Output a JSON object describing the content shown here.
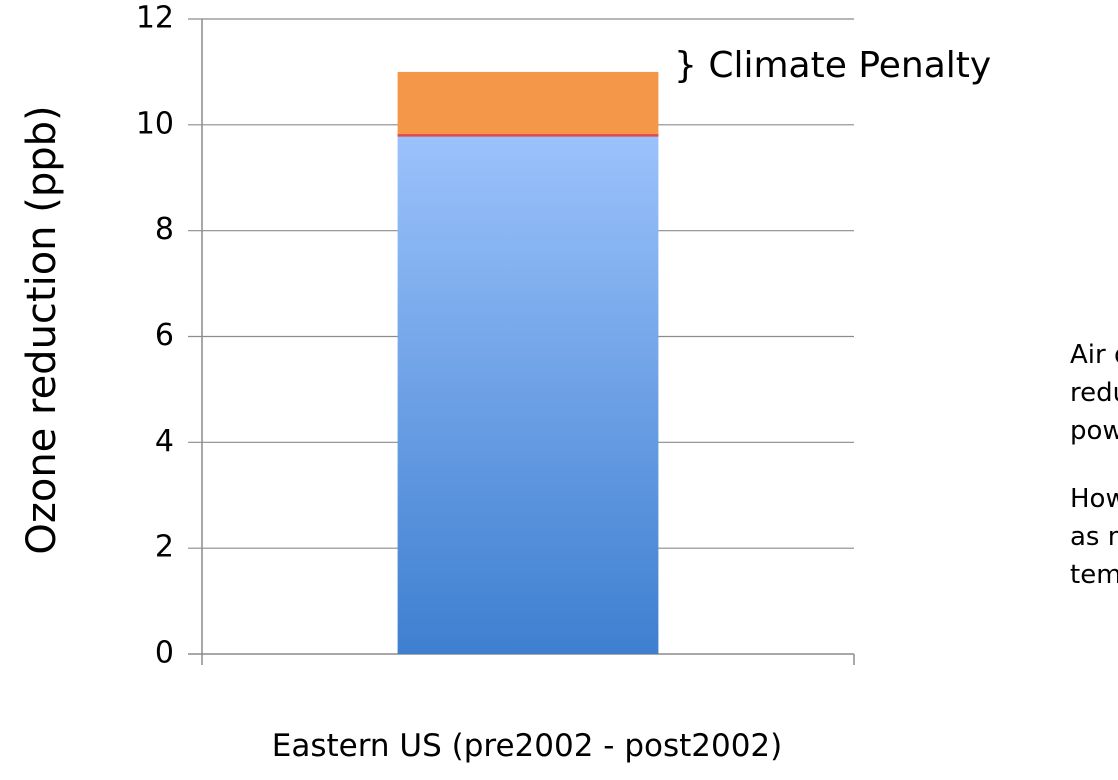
{
  "chart_data": {
    "type": "bar",
    "stacked": true,
    "categories": [
      "Eastern US (pre2002 - post2002)"
    ],
    "series": [
      {
        "name": "",
        "values": [
          9.8
        ],
        "color_top": "#9BC2FB",
        "color_bottom": "#3E7FD0"
      },
      {
        "name": "",
        "values": [
          1.2
        ],
        "color": "#F59749"
      }
    ],
    "divider_color": "#E0484F",
    "title": "",
    "xlabel": "",
    "ylabel": "Ozone reduction (ppb)",
    "ylim": [
      0,
      12
    ],
    "yticks": [
      0,
      2,
      4,
      6,
      8,
      10,
      12
    ],
    "grid": true,
    "legend": "none",
    "annotation": "} Climate Penalty"
  },
  "side_text": {
    "paragraph_1": [
      "Air quali",
      "reductio",
      "power p"
    ],
    "paragraph_2": [
      "Howeve",
      "as much",
      "tempera"
    ]
  }
}
